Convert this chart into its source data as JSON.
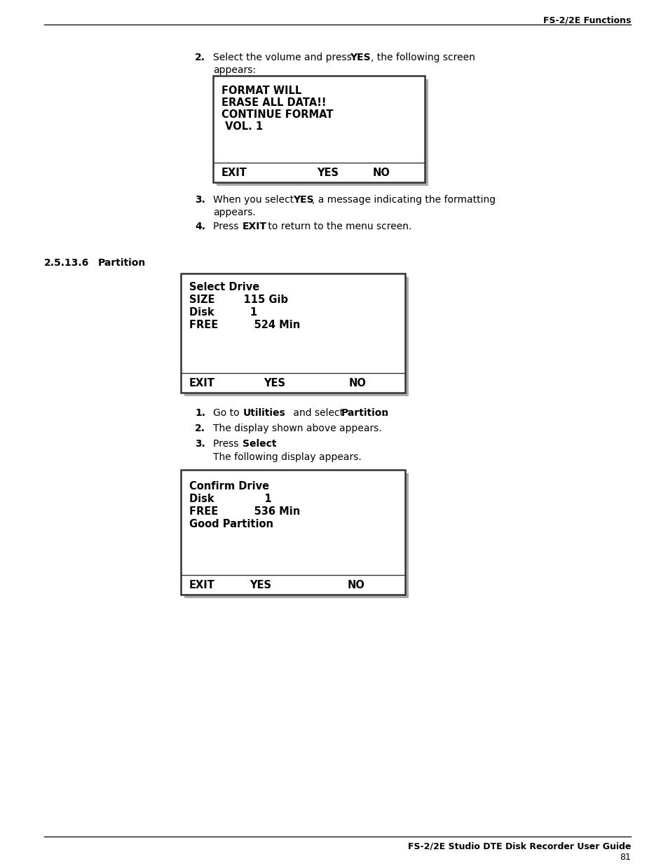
{
  "page_bg": "#ffffff",
  "header_text": "FS-2/2E Functions",
  "footer_text": "FS-2/2E Studio DTE Disk Recorder User Guide",
  "footer_page": "81",
  "section_num": "2.5.13.6",
  "section_title": "Partition",
  "box1_lines": [
    "FORMAT WILL",
    "ERASE ALL DATA!!",
    "CONTINUE FORMAT",
    " VOL. 1"
  ],
  "box1_footer": [
    "EXIT",
    "YES",
    "NO"
  ],
  "box2_lines": [
    "Select Drive",
    "SIZE        115 Gib",
    "Disk          1",
    "FREE          524 Min"
  ],
  "box2_footer": [
    "EXIT",
    "YES",
    "NO"
  ],
  "box3_lines": [
    "Confirm Drive",
    "Disk              1",
    "FREE          536 Min",
    "Good Partition"
  ],
  "box3_footer": [
    "EXIT",
    "YES",
    "NO"
  ],
  "text_color": "#000000",
  "box_border": "#333333",
  "box_bg": "#ffffff",
  "shadow_color": "#aaaaaa"
}
